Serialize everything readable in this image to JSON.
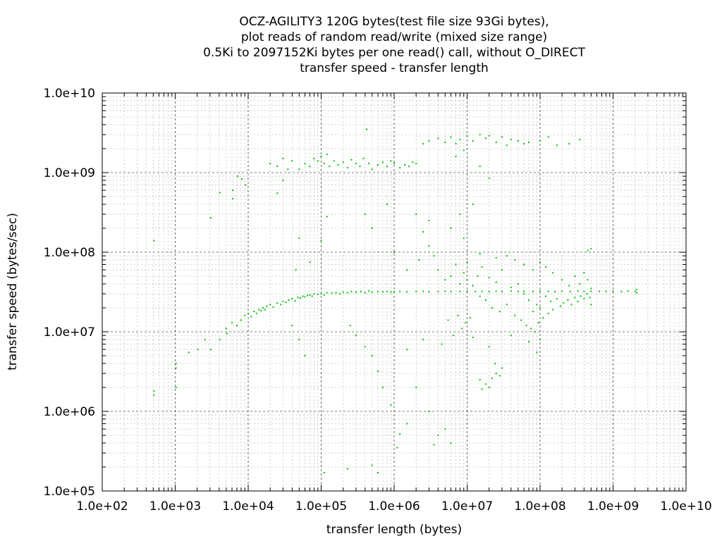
{
  "chart_data": {
    "type": "scatter",
    "title": [
      "OCZ-AGILITY3 120G bytes(test file size 93Gi bytes),",
      "plot reads of random read/write (mixed size range)",
      "0.5Ki to 2097152Ki bytes per one read() call, without O_DIRECT",
      "transfer speed - transfer length"
    ],
    "xlabel": "transfer length (bytes)",
    "ylabel": "transfer speed (bytes/sec)",
    "x_scale": "log",
    "y_scale": "log",
    "xlim": [
      100,
      10000000000
    ],
    "ylim": [
      100000,
      10000000000
    ],
    "x_ticks": [
      "1.0e+02",
      "1.0e+03",
      "1.0e+04",
      "1.0e+05",
      "1.0e+06",
      "1.0e+07",
      "1.0e+08",
      "1.0e+09",
      "1.0e+10"
    ],
    "y_ticks": [
      "1.0e+05",
      "1.0e+06",
      "1.0e+07",
      "1.0e+08",
      "1.0e+09",
      "1.0e+10"
    ],
    "grid": true,
    "point_color": "#00c000",
    "points": [
      [
        512,
        1800000
      ],
      [
        512,
        1600000
      ],
      [
        512,
        140000000
      ],
      [
        1024,
        4000000
      ],
      [
        1024,
        3500000
      ],
      [
        1024,
        2000000
      ],
      [
        1536,
        5500000
      ],
      [
        2048,
        6000000
      ],
      [
        2560,
        8000000
      ],
      [
        3072,
        6000000
      ],
      [
        3072,
        270000000
      ],
      [
        4096,
        560000000
      ],
      [
        4096,
        8000000
      ],
      [
        5120,
        9500000
      ],
      [
        6144,
        600000000
      ],
      [
        6144,
        470000000
      ],
      [
        7168,
        900000000
      ],
      [
        8192,
        830000000
      ],
      [
        9216,
        700000000
      ],
      [
        5000,
        11000000
      ],
      [
        6000,
        13000000
      ],
      [
        7000,
        12000000
      ],
      [
        8000,
        14000000
      ],
      [
        9000,
        16000000
      ],
      [
        10000,
        17000000
      ],
      [
        11000,
        15500000
      ],
      [
        12000,
        18000000
      ],
      [
        13000,
        17000000
      ],
      [
        14000,
        19000000
      ],
      [
        15000,
        18500000
      ],
      [
        16000,
        20000000
      ],
      [
        17000,
        19000000
      ],
      [
        18000,
        21000000
      ],
      [
        20000,
        22000000
      ],
      [
        22000,
        20500000
      ],
      [
        25000,
        23000000
      ],
      [
        28000,
        22000000
      ],
      [
        30000,
        24000000
      ],
      [
        33000,
        23500000
      ],
      [
        36000,
        25000000
      ],
      [
        40000,
        26000000
      ],
      [
        44000,
        24500000
      ],
      [
        48000,
        27000000
      ],
      [
        52000,
        26500000
      ],
      [
        56000,
        28000000
      ],
      [
        60000,
        27500000
      ],
      [
        65000,
        28500000
      ],
      [
        70000,
        29000000
      ],
      [
        75000,
        28000000
      ],
      [
        80000,
        30000000
      ],
      [
        90000,
        29500000
      ],
      [
        100000,
        30000000
      ],
      [
        110000,
        29000000
      ],
      [
        120000,
        31000000
      ],
      [
        140000,
        30500000
      ],
      [
        160000,
        31000000
      ],
      [
        180000,
        30000000
      ],
      [
        200000,
        31500000
      ],
      [
        230000,
        31000000
      ],
      [
        260000,
        32000000
      ],
      [
        300000,
        31500000
      ],
      [
        350000,
        32000000
      ],
      [
        400000,
        31000000
      ],
      [
        450000,
        32500000
      ],
      [
        500000,
        31500000
      ],
      [
        600000,
        32000000
      ],
      [
        700000,
        31800000
      ],
      [
        800000,
        32000000
      ],
      [
        900000,
        31500000
      ],
      [
        1000000,
        32000000
      ],
      [
        1200000,
        32200000
      ],
      [
        1500000,
        31800000
      ],
      [
        2000000,
        32000000
      ],
      [
        2500000,
        32300000
      ],
      [
        3000000,
        31900000
      ],
      [
        4000000,
        32000000
      ],
      [
        5000000,
        32200000
      ],
      [
        6000000,
        31800000
      ],
      [
        8000000,
        32000000
      ],
      [
        10000000,
        32400000
      ],
      [
        13000000,
        32000000
      ],
      [
        16000000,
        32200000
      ],
      [
        20000000,
        31900000
      ],
      [
        25000000,
        32300000
      ],
      [
        30000000,
        32000000
      ],
      [
        40000000,
        32500000
      ],
      [
        50000000,
        32100000
      ],
      [
        60000000,
        32300000
      ],
      [
        80000000,
        32000000
      ],
      [
        100000000,
        32400000
      ],
      [
        130000000,
        32200000
      ],
      [
        160000000,
        32000000
      ],
      [
        200000000,
        32300000
      ],
      [
        260000000,
        32100000
      ],
      [
        330000000,
        32400000
      ],
      [
        400000000,
        32000000
      ],
      [
        500000000,
        32200000
      ],
      [
        650000000,
        32300000
      ],
      [
        800000000,
        32000000
      ],
      [
        1000000000,
        32400000
      ],
      [
        1300000000,
        32100000
      ],
      [
        1600000000,
        32500000
      ],
      [
        2000000000,
        32200000
      ],
      [
        2100000000,
        31000000
      ],
      [
        2100000000,
        34000000
      ],
      [
        50000,
        1100000000
      ],
      [
        60000,
        1300000000
      ],
      [
        70000,
        1200000000
      ],
      [
        80000,
        1500000000
      ],
      [
        90000,
        1400000000
      ],
      [
        100000,
        1600000000
      ],
      [
        110000,
        1300000000
      ],
      [
        120000,
        1700000000
      ],
      [
        130000,
        1200000000
      ],
      [
        150000,
        1400000000
      ],
      [
        170000,
        1250000000
      ],
      [
        200000,
        1350000000
      ],
      [
        230000,
        1150000000
      ],
      [
        260000,
        1450000000
      ],
      [
        300000,
        1300000000
      ],
      [
        340000,
        1200000000
      ],
      [
        380000,
        1500000000
      ],
      [
        420000,
        3500000000
      ],
      [
        450000,
        1300000000
      ],
      [
        500000,
        1100000000
      ],
      [
        600000,
        1250000000
      ],
      [
        700000,
        1350000000
      ],
      [
        800000,
        1200000000
      ],
      [
        900000,
        1400000000
      ],
      [
        1000000,
        1300000000
      ],
      [
        1200000,
        1150000000
      ],
      [
        1400000,
        1250000000
      ],
      [
        1600000,
        1200000000
      ],
      [
        1800000,
        1350000000
      ],
      [
        2000000,
        1300000000
      ],
      [
        20000,
        1300000000
      ],
      [
        25000,
        1200000000
      ],
      [
        30000,
        1500000000
      ],
      [
        35000,
        1100000000
      ],
      [
        40000,
        1400000000
      ],
      [
        25000,
        550000000
      ],
      [
        30000,
        800000000
      ],
      [
        2500000,
        2300000000
      ],
      [
        3000000,
        2500000000
      ],
      [
        4000000,
        2700000000
      ],
      [
        5000000,
        2400000000
      ],
      [
        6000000,
        2800000000
      ],
      [
        7000000,
        2300000000
      ],
      [
        8000000,
        2600000000
      ],
      [
        10000000,
        2900000000
      ],
      [
        12000000,
        2500000000
      ],
      [
        15000000,
        3000000000
      ],
      [
        18000000,
        2700000000
      ],
      [
        20000000,
        2900000000
      ],
      [
        25000000,
        2400000000
      ],
      [
        30000000,
        2800000000
      ],
      [
        35000000,
        2200000000
      ],
      [
        40000000,
        2600000000
      ],
      [
        50000000,
        2500000000
      ],
      [
        60000000,
        2300000000
      ],
      [
        70000000,
        2400000000
      ],
      [
        100000000,
        2500000000
      ],
      [
        130000000,
        2800000000
      ],
      [
        170000000,
        2200000000
      ],
      [
        250000000,
        2300000000
      ],
      [
        350000000,
        2600000000
      ],
      [
        7000000,
        1600000000
      ],
      [
        9000000,
        1900000000
      ],
      [
        15000000,
        1200000000
      ],
      [
        20000000,
        850000000
      ],
      [
        2000000,
        300000000
      ],
      [
        2500000,
        180000000
      ],
      [
        3000000,
        120000000
      ],
      [
        3500000,
        90000000
      ],
      [
        4000000,
        60000000
      ],
      [
        5000000,
        45000000
      ],
      [
        6000000,
        50000000
      ],
      [
        7000000,
        70000000
      ],
      [
        8000000,
        40000000
      ],
      [
        9000000,
        55000000
      ],
      [
        10000000,
        45000000
      ],
      [
        12000000,
        38000000
      ],
      [
        14000000,
        50000000
      ],
      [
        15000000,
        28000000
      ],
      [
        16000000,
        65000000
      ],
      [
        18000000,
        25000000
      ],
      [
        20000000,
        48000000
      ],
      [
        22000000,
        20000000
      ],
      [
        25000000,
        42000000
      ],
      [
        28000000,
        18000000
      ],
      [
        30000000,
        60000000
      ],
      [
        35000000,
        22000000
      ],
      [
        40000000,
        36000000
      ],
      [
        45000000,
        16000000
      ],
      [
        50000000,
        40000000
      ],
      [
        55000000,
        14000000
      ],
      [
        60000000,
        30000000
      ],
      [
        65000000,
        12000000
      ],
      [
        70000000,
        25000000
      ],
      [
        75000000,
        11000000
      ],
      [
        80000000,
        18000000
      ],
      [
        85000000,
        10000000
      ],
      [
        90000000,
        22000000
      ],
      [
        95000000,
        13000000
      ],
      [
        100000000,
        20000000
      ],
      [
        110000000,
        15000000
      ],
      [
        120000000,
        28000000
      ],
      [
        130000000,
        17000000
      ],
      [
        140000000,
        24000000
      ],
      [
        150000000,
        19000000
      ],
      [
        170000000,
        26000000
      ],
      [
        190000000,
        21000000
      ],
      [
        210000000,
        23000000
      ],
      [
        240000000,
        25000000
      ],
      [
        270000000,
        22000000
      ],
      [
        300000000,
        27000000
      ],
      [
        330000000,
        24000000
      ],
      [
        360000000,
        28000000
      ],
      [
        400000000,
        26000000
      ],
      [
        440000000,
        30000000
      ],
      [
        480000000,
        27000000
      ],
      [
        500000000,
        35000000
      ],
      [
        500000000,
        22000000
      ],
      [
        450000000,
        45000000
      ],
      [
        400000000,
        55000000
      ],
      [
        350000000,
        40000000
      ],
      [
        300000000,
        50000000
      ],
      [
        250000000,
        38000000
      ],
      [
        200000000,
        45000000
      ],
      [
        150000000,
        55000000
      ],
      [
        120000000,
        65000000
      ],
      [
        100000000,
        75000000
      ],
      [
        80000000,
        60000000
      ],
      [
        60000000,
        70000000
      ],
      [
        45000000,
        80000000
      ],
      [
        35000000,
        90000000
      ],
      [
        25000000,
        85000000
      ],
      [
        15000000,
        95000000
      ],
      [
        10000000,
        75000000
      ],
      [
        500000000,
        110000000
      ],
      [
        450000000,
        105000000
      ],
      [
        15000000,
        2500000
      ],
      [
        18000000,
        2200000
      ],
      [
        20000000,
        2000000
      ],
      [
        22000000,
        2600000
      ],
      [
        25000000,
        3000000
      ],
      [
        28000000,
        2800000
      ],
      [
        30000000,
        3500000
      ],
      [
        16000000,
        1900000
      ],
      [
        24000000,
        4000000
      ],
      [
        3000000,
        1000000
      ],
      [
        4000000,
        500000
      ],
      [
        5000000,
        600000
      ],
      [
        6000000,
        400000
      ],
      [
        2000000,
        2000000
      ],
      [
        1500000,
        700000
      ],
      [
        1200000,
        520000
      ],
      [
        900000,
        1200000
      ],
      [
        700000,
        2000000
      ],
      [
        600000,
        3200000
      ],
      [
        500000,
        5000000
      ],
      [
        400000,
        6500000
      ],
      [
        300000,
        9000000
      ],
      [
        250000,
        12000000
      ],
      [
        600000,
        170000
      ],
      [
        500000,
        210000
      ],
      [
        230000,
        190000
      ],
      [
        110000,
        170000
      ],
      [
        1100000,
        350000
      ],
      [
        3500000,
        380000
      ],
      [
        1500000,
        6000000
      ],
      [
        2500000,
        8000000
      ],
      [
        4500000,
        7000000
      ],
      [
        6500000,
        9000000
      ],
      [
        8500000,
        11000000
      ],
      [
        12000000,
        8500000
      ],
      [
        20000000,
        6500000
      ],
      [
        40000000,
        9000000
      ],
      [
        70000000,
        7500000
      ],
      [
        90000000,
        5500000
      ],
      [
        100000000,
        8000000
      ],
      [
        5500000,
        14000000
      ],
      [
        7500000,
        16000000
      ],
      [
        9500000,
        13000000
      ],
      [
        11000000,
        15000000
      ],
      [
        50000,
        8000000
      ],
      [
        60000,
        5000000
      ],
      [
        40000,
        12000000
      ],
      [
        120000,
        280000000
      ],
      [
        50000,
        150000000
      ],
      [
        100000,
        140000000
      ],
      [
        70000,
        75000000
      ],
      [
        45000,
        60000000
      ],
      [
        400000,
        300000000
      ],
      [
        500000,
        200000000
      ],
      [
        8000000,
        300000000
      ],
      [
        12000000,
        400000000
      ],
      [
        6000000,
        200000000
      ],
      [
        9000000,
        150000000
      ],
      [
        3000000,
        250000000
      ],
      [
        1000000,
        100000000
      ],
      [
        800000,
        400000000
      ],
      [
        1500000,
        60000000
      ],
      [
        2200000,
        80000000
      ]
    ]
  }
}
